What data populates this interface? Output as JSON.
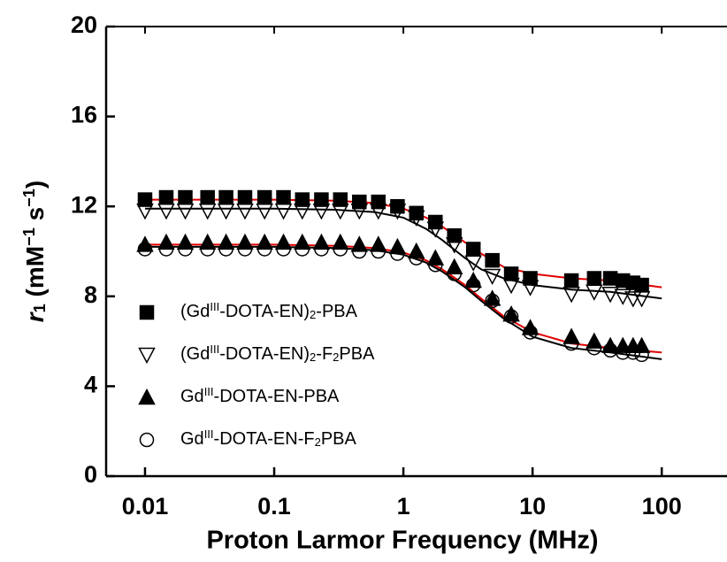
{
  "chart_data": {
    "type": "scatter",
    "xlabel": "Proton Larmor Frequency (MHz)",
    "ylabel": "r1 (mM−1 s−1)",
    "xscale": "log",
    "xlim": [
      0.005,
      320
    ],
    "ylim": [
      0,
      20
    ],
    "xticks": [
      0.01,
      0.1,
      1,
      10,
      100
    ],
    "yticks": [
      0,
      4,
      8,
      12,
      16,
      20
    ],
    "legend": "lower left",
    "x": [
      0.01,
      0.0146,
      0.0205,
      0.0305,
      0.0424,
      0.0594,
      0.0843,
      0.118,
      0.165,
      0.232,
      0.325,
      0.456,
      0.64,
      0.9,
      1.26,
      1.77,
      2.48,
      3.48,
      4.88,
      6.84,
      9.6,
      20,
      30,
      40,
      50,
      60,
      70
    ],
    "series": [
      {
        "name": "(GdIII-DOTA-EN)2-PBA",
        "marker": "square",
        "filled": true,
        "color": "#000000",
        "values": [
          12.3,
          12.4,
          12.4,
          12.4,
          12.4,
          12.4,
          12.4,
          12.4,
          12.3,
          12.3,
          12.3,
          12.2,
          12.2,
          12.0,
          11.7,
          11.3,
          10.7,
          10.1,
          9.6,
          9.0,
          8.8,
          8.7,
          8.8,
          8.8,
          8.7,
          8.6,
          8.5
        ]
      },
      {
        "name": "(GdIII-DOTA-EN)2-F2PBA",
        "marker": "triangle-down",
        "filled": false,
        "color": "#000000",
        "values": [
          11.8,
          11.8,
          11.8,
          11.8,
          11.8,
          11.8,
          11.8,
          11.8,
          11.8,
          11.8,
          11.8,
          11.8,
          11.8,
          11.8,
          11.5,
          11.0,
          10.3,
          9.5,
          8.9,
          8.5,
          8.4,
          8.1,
          8.2,
          8.1,
          8.0,
          7.9,
          7.9
        ]
      },
      {
        "name": "GdIII-DOTA-EN-PBA",
        "marker": "triangle-up",
        "filled": true,
        "color": "#000000",
        "values": [
          10.3,
          10.4,
          10.4,
          10.4,
          10.4,
          10.4,
          10.4,
          10.4,
          10.4,
          10.4,
          10.4,
          10.3,
          10.3,
          10.2,
          10.0,
          9.7,
          9.3,
          8.7,
          7.9,
          7.2,
          6.6,
          6.2,
          6.0,
          5.8,
          5.8,
          5.8,
          5.8
        ]
      },
      {
        "name": "GdIII-DOTA-EN-F2PBA",
        "marker": "circle",
        "filled": false,
        "color": "#000000",
        "values": [
          10.1,
          10.1,
          10.1,
          10.1,
          10.1,
          10.1,
          10.1,
          10.1,
          10.1,
          10.1,
          10.1,
          10.0,
          10.0,
          9.9,
          9.7,
          9.4,
          9.0,
          8.5,
          7.8,
          7.1,
          6.4,
          5.9,
          5.7,
          5.6,
          5.5,
          5.5,
          5.4
        ]
      }
    ],
    "fits": {
      "x": [
        0.01,
        0.1,
        0.3,
        0.6,
        1,
        1.5,
        2,
        3,
        4,
        6,
        10,
        20,
        40,
        100
      ],
      "lines": [
        {
          "color": "#e00000",
          "values": [
            12.3,
            12.3,
            12.25,
            12.15,
            11.9,
            11.5,
            11.1,
            10.4,
            9.9,
            9.3,
            9.0,
            8.8,
            8.7,
            8.4
          ]
        },
        {
          "color": "#000000",
          "values": [
            11.9,
            11.9,
            11.85,
            11.75,
            11.5,
            11.0,
            10.5,
            9.7,
            9.2,
            8.8,
            8.5,
            8.3,
            8.2,
            7.9
          ]
        },
        {
          "color": "#e00000",
          "values": [
            10.3,
            10.3,
            10.25,
            10.15,
            9.95,
            9.6,
            9.2,
            8.5,
            7.9,
            7.1,
            6.4,
            5.9,
            5.7,
            5.5
          ]
        },
        {
          "color": "#000000",
          "values": [
            10.2,
            10.2,
            10.15,
            10.05,
            9.85,
            9.5,
            9.1,
            8.4,
            7.8,
            7.0,
            6.2,
            5.7,
            5.5,
            5.2
          ]
        }
      ]
    }
  }
}
